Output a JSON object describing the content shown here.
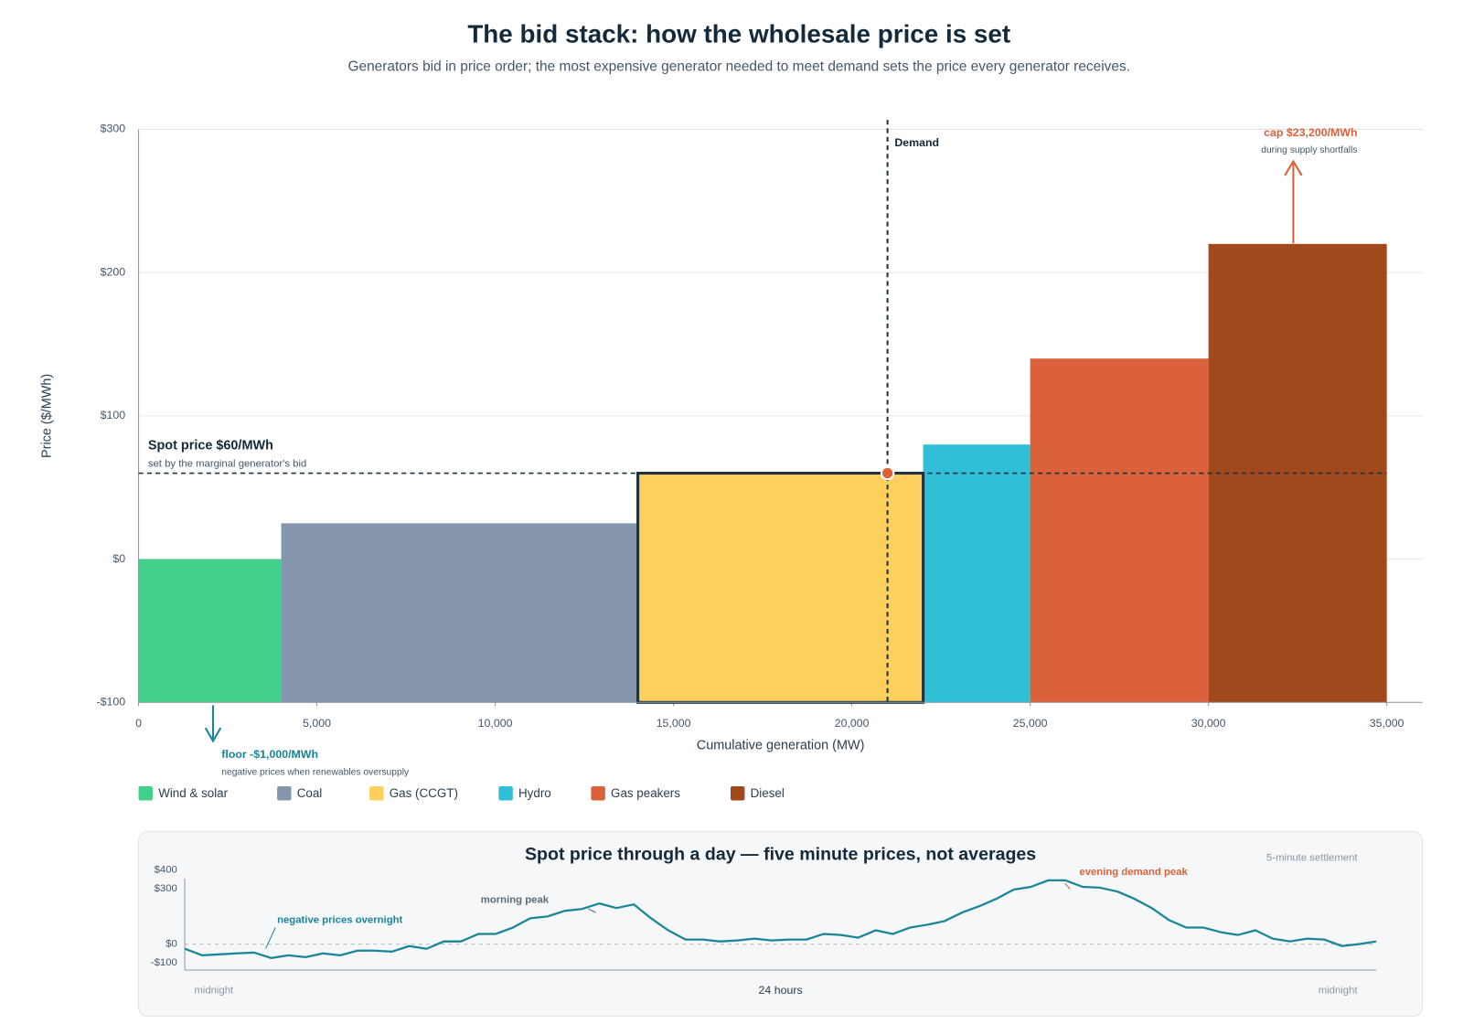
{
  "chart_data": [
    {
      "type": "bid-stack",
      "title": "The bid stack: how the wholesale price is set",
      "subtitle": "Generators bid in price order; the most expensive generator needed to meet demand sets the price every generator receives.",
      "x_label": "Cumulative generation (MW)",
      "y_label": "Price ($/MWh)",
      "categories": [
        "Wind & solar",
        "Coal",
        "Gas (CCGT)",
        "Hydro",
        "Gas peakers",
        "Diesel"
      ],
      "widths": [
        4000,
        10000,
        8000,
        3000,
        5000,
        5000
      ],
      "values": [
        0,
        25,
        60,
        80,
        140,
        220
      ],
      "colors": [
        "#43d08a",
        "#8596ad",
        "#fdcf5c",
        "#30bfd6",
        "#da613a",
        "#a2481d"
      ],
      "xlim": [
        0,
        36000
      ],
      "xticks": [
        0,
        {
          "value": 5000,
          "label": "5,000"
        },
        {
          "value": 10000,
          "label": "10,000"
        },
        {
          "value": 15000,
          "label": "15,000"
        },
        {
          "value": 20000,
          "label": "20,000"
        },
        {
          "value": 25000,
          "label": "25,000"
        },
        {
          "value": 30000,
          "label": "30,000"
        },
        {
          "value": 35000,
          "label": "35,000"
        }
      ],
      "ylim": [
        -100,
        300
      ],
      "yticks": [
        {
          "value": -100,
          "label": "-$100"
        },
        {
          "value": 0,
          "label": "$0"
        },
        {
          "value": 100,
          "label": "$100"
        },
        {
          "value": 200,
          "label": "$200"
        },
        {
          "value": 300,
          "label": "$300"
        }
      ],
      "grid": true,
      "demand": 21000,
      "demand_label": "Demand",
      "spot_price": 60,
      "annotations": {
        "spot": {
          "title": "Spot price $60/MWh",
          "note": "set by the marginal generator's bid"
        },
        "cap": {
          "title": "cap $23,200/MWh",
          "note": "during supply shortfalls"
        },
        "floor": {
          "title": "floor -$1,000/MWh",
          "note": "negative prices when renewables oversupply"
        }
      }
    },
    {
      "type": "line",
      "title": "Spot price through a day — five minute prices, not averages",
      "note": "5-minute settlement",
      "x_labels": [
        "midnight",
        "24 hours",
        "midnight"
      ],
      "annotations": [
        "negative prices overnight",
        "morning peak",
        "evening demand peak"
      ],
      "color": "#1b8598",
      "values": [
        -25,
        -60,
        -55,
        -50,
        -45,
        -75,
        -60,
        -70,
        -50,
        -60,
        -35,
        -35,
        -40,
        -10,
        -25,
        15,
        15,
        55,
        55,
        90,
        140,
        150,
        180,
        190,
        220,
        195,
        215,
        140,
        75,
        25,
        25,
        15,
        20,
        30,
        20,
        25,
        25,
        55,
        50,
        35,
        75,
        55,
        90,
        105,
        125,
        170,
        205,
        245,
        295,
        310,
        345,
        345,
        310,
        305,
        285,
        245,
        195,
        130,
        90,
        90,
        65,
        50,
        75,
        30,
        15,
        30,
        25,
        -10,
        0,
        15
      ],
      "ylim": [
        -140,
        400
      ],
      "yticks": [
        {
          "value": -100,
          "label": "-$100"
        },
        {
          "value": 0,
          "label": "$0"
        },
        {
          "value": 300,
          "label": "$300"
        },
        {
          "value": 400,
          "label": "$400"
        }
      ]
    }
  ]
}
